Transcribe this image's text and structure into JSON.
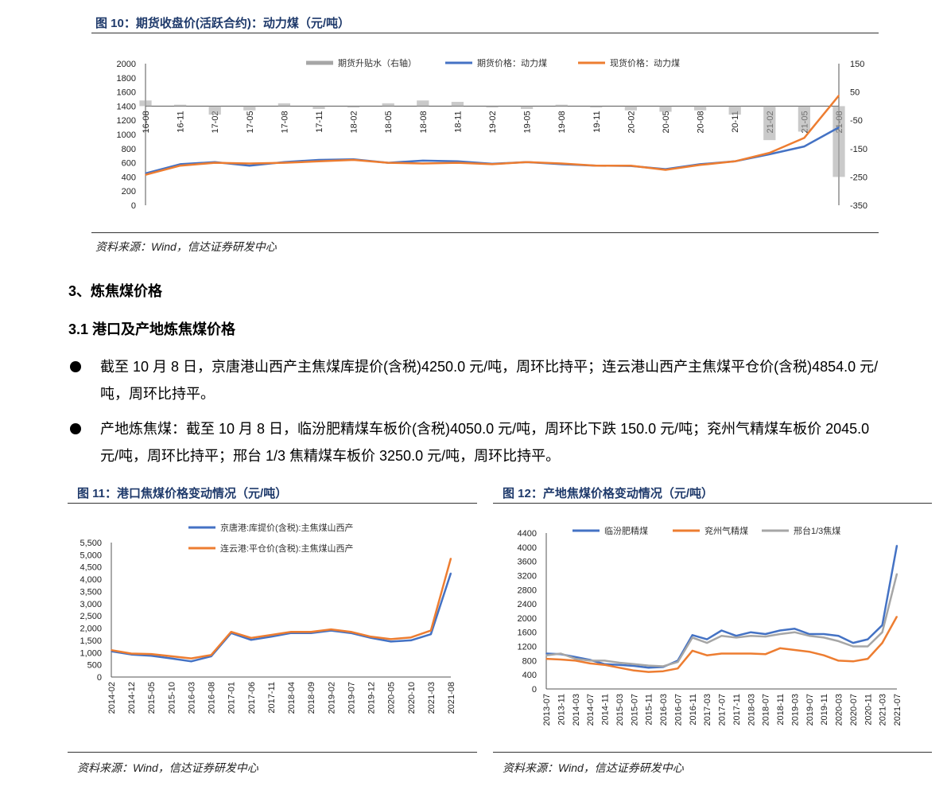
{
  "fig10": {
    "title": "图 10：期货收盘价(活跃合约)：动力煤（元/吨）",
    "source": "资料来源：Wind，信达证券研发中心"
  },
  "section3": {
    "heading": "3、炼焦煤价格"
  },
  "section31": {
    "heading": "3.1  港口及产地炼焦煤价格"
  },
  "bullets": [
    "截至 10 月 8 日，京唐港山西产主焦煤库提价(含税)4250.0 元/吨，周环比持平；连云港山西产主焦煤平仓价(含税)4854.0 元/吨，周环比持平。",
    "产地炼焦煤：截至 10 月 8 日，临汾肥精煤车板价(含税)4050.0 元/吨，周环比下跌 150.0 元/吨；兖州气精煤车板价 2045.0 元/吨，周环比持平；邢台 1/3 焦精煤车板价 3250.0 元/吨，周环比持平。"
  ],
  "fig11": {
    "title": "图 11：港口焦煤价格变动情况（元/吨）",
    "source": "资料来源：Wind，信达证券研发中心"
  },
  "fig12": {
    "title": "图 12：产地焦煤价格变动情况（元/吨）",
    "source": "资料来源：Wind，信达证券研发中心"
  },
  "chart_data": [
    {
      "id": "fig10",
      "type": "line",
      "x": [
        "16-08",
        "16-11",
        "17-02",
        "17-05",
        "17-08",
        "17-11",
        "18-02",
        "18-05",
        "18-08",
        "18-11",
        "19-02",
        "19-05",
        "19-08",
        "19-11",
        "20-02",
        "20-05",
        "20-08",
        "20-11",
        "21-02",
        "21-05",
        "21-08"
      ],
      "ylim": [
        0,
        2000
      ],
      "yticks": [
        0,
        200,
        400,
        600,
        800,
        1000,
        1200,
        1400,
        1600,
        1800,
        2000
      ],
      "y2lim": [
        -350,
        150
      ],
      "y2ticks": [
        -350,
        -250,
        -150,
        -50,
        50,
        150
      ],
      "legend_position": "top",
      "series": [
        {
          "name": "期货升贴水（右轴）",
          "axis": "right",
          "kind": "bar",
          "color": "#a6a6a6",
          "values": [
            20,
            5,
            -30,
            -15,
            10,
            -10,
            -5,
            10,
            20,
            15,
            -5,
            -10,
            5,
            -5,
            -15,
            -20,
            -15,
            -30,
            -120,
            -90,
            -250
          ]
        },
        {
          "name": "期货价格：动力煤",
          "axis": "left",
          "color": "#4472c4",
          "values": [
            450,
            580,
            610,
            560,
            610,
            640,
            650,
            600,
            630,
            620,
            585,
            610,
            580,
            560,
            555,
            510,
            580,
            620,
            720,
            830,
            1100
          ]
        },
        {
          "name": "现货价格：动力煤",
          "axis": "left",
          "color": "#ed7d31",
          "values": [
            430,
            560,
            600,
            590,
            600,
            620,
            640,
            600,
            590,
            600,
            580,
            610,
            590,
            560,
            560,
            500,
            570,
            620,
            740,
            950,
            1550
          ]
        }
      ]
    },
    {
      "id": "fig11",
      "type": "line",
      "x": [
        "2014-02",
        "2014-12",
        "2015-05",
        "2015-10",
        "2016-03",
        "2016-08",
        "2017-01",
        "2017-06",
        "2017-11",
        "2018-04",
        "2018-09",
        "2019-02",
        "2019-07",
        "2019-12",
        "2020-05",
        "2020-10",
        "2021-03",
        "2021-08"
      ],
      "ylim": [
        0,
        5500
      ],
      "yticks": [
        "0",
        "500",
        "1,000",
        "1,500",
        "2,000",
        "2,500",
        "3,000",
        "3,500",
        "4,000",
        "4,500",
        "5,000",
        "5,500"
      ],
      "legend_position": "top",
      "series": [
        {
          "name": "京唐港:库提价(含税):主焦煤山西产",
          "color": "#4472c4",
          "values": [
            1050,
            920,
            870,
            760,
            640,
            850,
            1800,
            1520,
            1650,
            1800,
            1800,
            1900,
            1800,
            1600,
            1450,
            1500,
            1750,
            4250
          ]
        },
        {
          "name": "连云港:平仓价(含税):主焦煤山西产",
          "color": "#ed7d31",
          "values": [
            1100,
            960,
            940,
            850,
            760,
            900,
            1850,
            1600,
            1720,
            1850,
            1850,
            1950,
            1850,
            1650,
            1550,
            1620,
            1900,
            4854
          ]
        }
      ]
    },
    {
      "id": "fig12",
      "type": "line",
      "x": [
        "2013-07",
        "2013-11",
        "2014-03",
        "2014-07",
        "2014-11",
        "2015-03",
        "2015-07",
        "2015-11",
        "2016-03",
        "2016-07",
        "2016-11",
        "2017-03",
        "2017-07",
        "2017-11",
        "2018-03",
        "2018-07",
        "2018-11",
        "2019-03",
        "2019-07",
        "2019-11",
        "2020-03",
        "2020-07",
        "2020-11",
        "2021-03",
        "2021-07"
      ],
      "ylim": [
        0,
        4400
      ],
      "yticks": [
        0,
        400,
        800,
        1200,
        1600,
        2000,
        2400,
        2800,
        3200,
        3600,
        4000,
        4400
      ],
      "legend_position": "top",
      "series": [
        {
          "name": "临汾肥精煤",
          "color": "#4472c4",
          "values": [
            1000,
            980,
            900,
            820,
            700,
            680,
            650,
            600,
            620,
            800,
            1520,
            1400,
            1650,
            1500,
            1600,
            1550,
            1650,
            1700,
            1550,
            1550,
            1500,
            1300,
            1400,
            1800,
            4050
          ]
        },
        {
          "name": "兖州气精煤",
          "color": "#ed7d31",
          "values": [
            850,
            830,
            800,
            720,
            680,
            600,
            520,
            480,
            500,
            580,
            1080,
            950,
            1000,
            1000,
            1000,
            980,
            1150,
            1100,
            1050,
            950,
            800,
            780,
            850,
            1300,
            2045
          ]
        },
        {
          "name": "邢台1/3焦煤",
          "color": "#a6a6a6",
          "values": [
            950,
            1000,
            850,
            800,
            800,
            740,
            700,
            660,
            640,
            760,
            1450,
            1300,
            1500,
            1450,
            1500,
            1480,
            1550,
            1600,
            1500,
            1450,
            1350,
            1200,
            1200,
            1600,
            3250
          ]
        }
      ]
    }
  ]
}
